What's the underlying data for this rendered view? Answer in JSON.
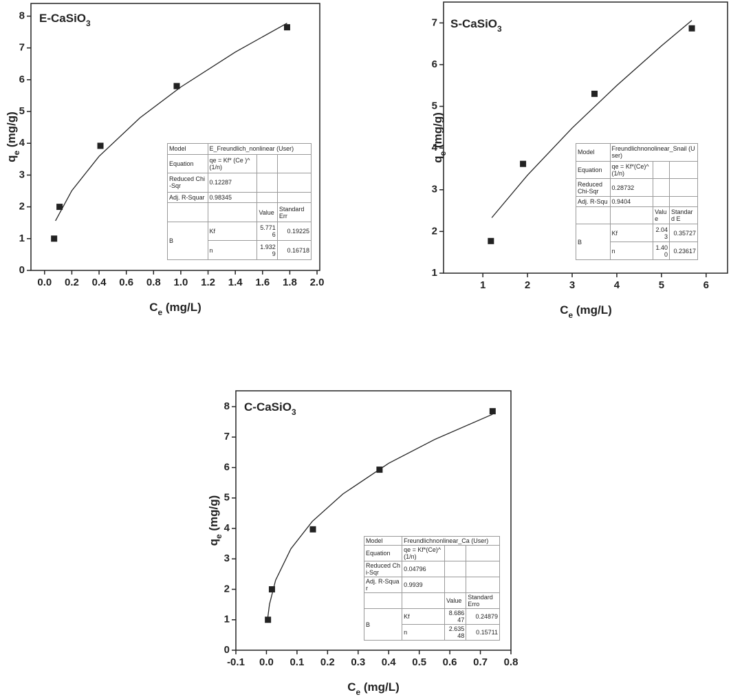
{
  "chart_data": [
    {
      "type": "scatter",
      "title": [
        "E-CaSiO",
        "3"
      ],
      "xlabel": [
        "C",
        "e",
        " (mg/L)"
      ],
      "ylabel": [
        "q",
        "e",
        " (mg/g)"
      ],
      "x": [
        0.07,
        0.11,
        0.41,
        0.97,
        1.78
      ],
      "values": [
        1.0,
        2.0,
        3.92,
        5.8,
        7.65
      ],
      "color": "#222222",
      "fit": {
        "x": [
          0.08,
          0.2,
          0.4,
          0.7,
          1.0,
          1.4,
          1.78
        ],
        "values": [
          1.56,
          2.51,
          3.59,
          4.8,
          5.77,
          6.87,
          7.78
        ]
      },
      "xlim": [
        -0.1,
        2.02
      ],
      "ylim": [
        0,
        8.4
      ],
      "xticks": [
        {
          "value": 0,
          "label": "0.0"
        },
        0.2,
        0.4,
        0.6,
        0.8,
        {
          "value": 1,
          "label": "1.0"
        },
        1.2,
        1.4,
        1.6,
        1.8,
        {
          "value": 2,
          "label": "2.0"
        }
      ],
      "yticks": [
        0,
        1,
        2,
        3,
        4,
        5,
        6,
        7,
        8
      ],
      "grid": false,
      "fit_table": {
        "rows": [
          [
            "Model",
            "E_Freundlich_nonlinear (User)"
          ],
          [
            "Equation",
            "qe = Kf* (Ce )^(1/n)"
          ],
          [
            "Reduced Chi-Sqr",
            "0.12287"
          ],
          [
            "Adj. R-Squar",
            "0.98345"
          ]
        ],
        "param_header": [
          "Value",
          "Standard Err"
        ],
        "param_group": "B",
        "params": [
          [
            "Kf",
            "5.7716",
            "0.19225"
          ],
          [
            "n",
            "1.9329",
            "0.16718"
          ]
        ]
      }
    },
    {
      "type": "scatter",
      "title": [
        "S-CaSiO",
        "3"
      ],
      "xlabel": [
        "C",
        "e",
        " (mg/L)"
      ],
      "ylabel": [
        "q",
        "e",
        " (mg/g)"
      ],
      "x": [
        1.18,
        1.9,
        3.5,
        5.68
      ],
      "values": [
        1.77,
        3.62,
        5.3,
        6.87
      ],
      "color": "#222222",
      "fit": {
        "x": [
          1.2,
          2,
          3,
          4,
          5,
          5.68
        ],
        "values": [
          2.33,
          3.35,
          4.48,
          5.5,
          6.45,
          7.06
        ]
      },
      "xlim": [
        0.12,
        6.48
      ],
      "ylim": [
        1,
        7.5
      ],
      "xticks": [
        1,
        2,
        3,
        4,
        5,
        6
      ],
      "yticks": [
        1,
        2,
        3,
        4,
        5,
        6,
        7
      ],
      "grid": false,
      "fit_table": {
        "rows": [
          [
            "Model",
            "Freundlichnonolinear_Snail (User)"
          ],
          [
            "Equation",
            "qe = Kf*(Ce)^(1/n)"
          ],
          [
            "Reduced Chi-Sqr",
            "0.28732"
          ],
          [
            "Adj. R-Squ",
            "0.9404"
          ]
        ],
        "param_header": [
          "Value",
          "Standard E"
        ],
        "param_group": "B",
        "params": [
          [
            "Kf",
            "2.043",
            "0.35727"
          ],
          [
            "n",
            "1.400",
            "0.23617"
          ]
        ]
      }
    },
    {
      "type": "scatter",
      "title": [
        "C-CaSiO",
        "3"
      ],
      "xlabel": [
        "C",
        "e",
        " (mg/L)"
      ],
      "ylabel": [
        "q",
        "e",
        " (mg/g)"
      ],
      "x": [
        0.005,
        0.018,
        0.152,
        0.37,
        0.74
      ],
      "values": [
        1.0,
        2.0,
        3.97,
        5.93,
        7.85
      ],
      "color": "#222222",
      "fit": {
        "x": [
          0.003,
          0.01,
          0.03,
          0.08,
          0.15,
          0.25,
          0.4,
          0.55,
          0.74
        ],
        "values": [
          0.96,
          1.51,
          2.3,
          3.33,
          4.23,
          5.13,
          6.14,
          6.92,
          7.75
        ]
      },
      "xlim": [
        -0.1,
        0.8
      ],
      "ylim": [
        0,
        8.52
      ],
      "xticks": [
        -0.1,
        {
          "value": 0,
          "label": "0.0"
        },
        0.1,
        0.2,
        0.3,
        0.4,
        0.5,
        0.6,
        0.7,
        0.8
      ],
      "yticks": [
        0,
        1,
        2,
        3,
        4,
        5,
        6,
        7,
        8
      ],
      "grid": false,
      "fit_table": {
        "rows": [
          [
            "Model",
            "Freundlichnonlinear_Ca (User)"
          ],
          [
            "Equation",
            "qe = Kf*(Ce)^(1/n)"
          ],
          [
            "Reduced Chi-Sqr",
            "0.04796"
          ],
          [
            "Adj. R-Squar",
            "0.9939"
          ]
        ],
        "param_header": [
          "Value",
          "Standard Erro"
        ],
        "param_group": "B",
        "params": [
          [
            "Kf",
            "8.68647",
            "0.24879"
          ],
          [
            "n",
            "2.63548",
            "0.15711"
          ]
        ]
      }
    }
  ]
}
